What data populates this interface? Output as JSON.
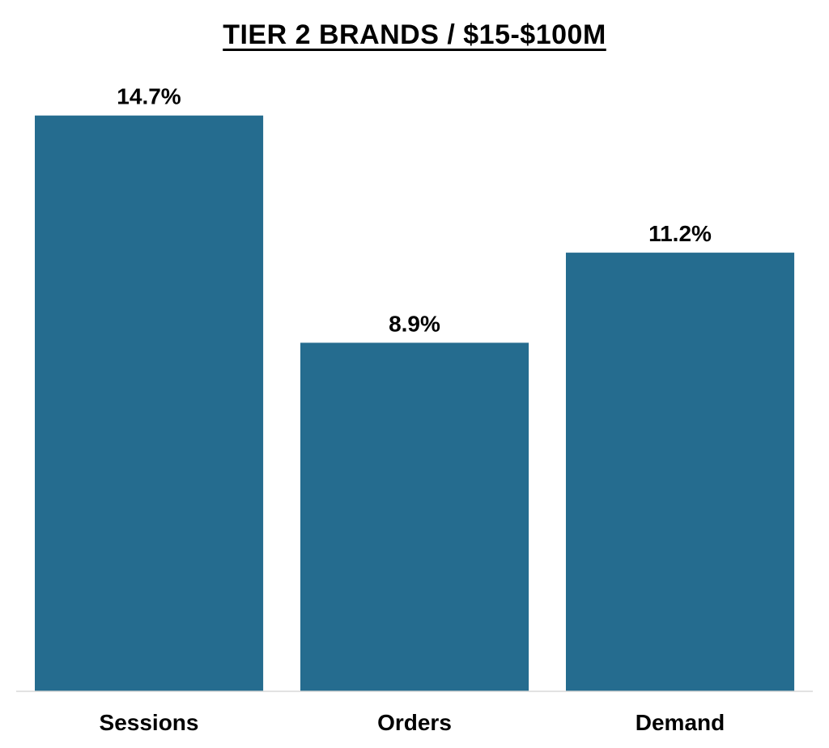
{
  "chart_data": {
    "type": "bar",
    "title": "TIER 2 BRANDS / $15-$100M",
    "categories": [
      "Sessions",
      "Orders",
      "Demand"
    ],
    "values": [
      14.7,
      8.9,
      11.2
    ],
    "value_labels": [
      "14.7%",
      "8.9%",
      "11.2%"
    ],
    "xlabel": "",
    "ylabel": "",
    "ylim": [
      0,
      15.5
    ],
    "grid": false,
    "legend": "none",
    "bar_color": "#256C8F",
    "axis_color": "#D9D9D9"
  }
}
